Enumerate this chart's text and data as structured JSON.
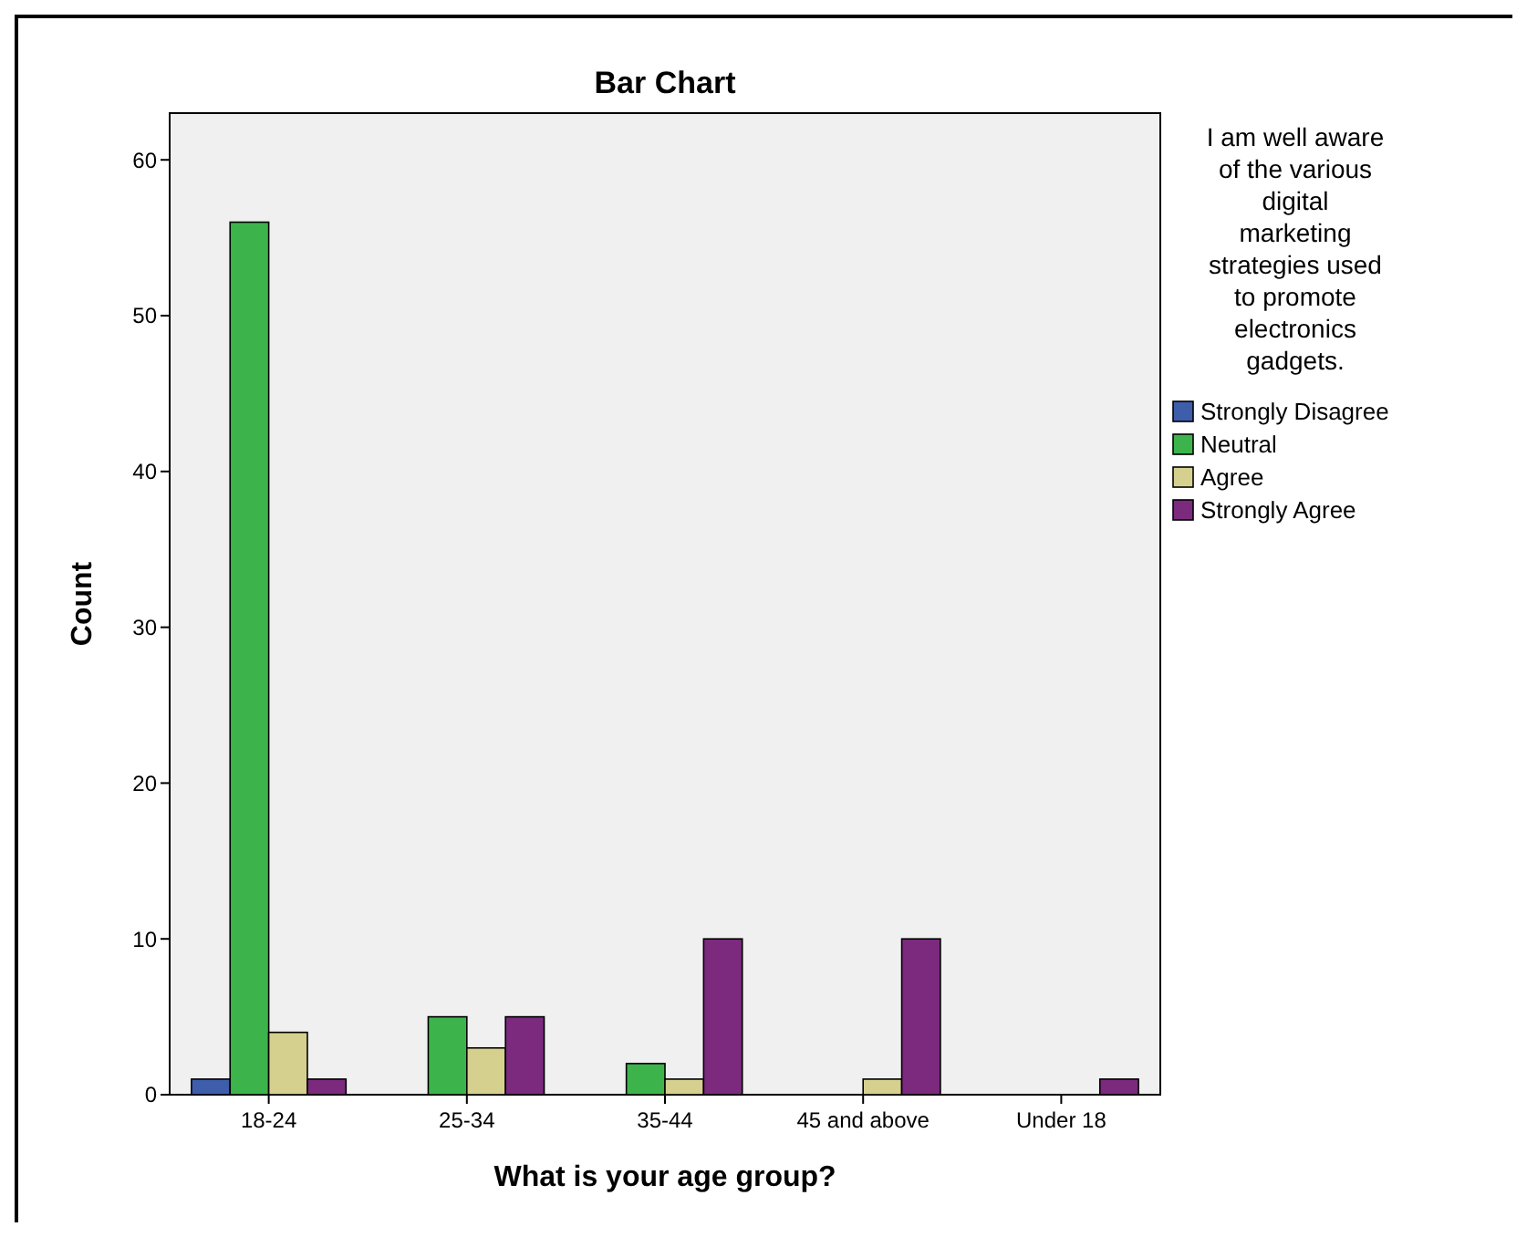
{
  "chart_data": {
    "type": "bar",
    "title": "Bar Chart",
    "xlabel": "What is your age group?",
    "ylabel": "Count",
    "legend_title": "I am well aware of the various digital marketing strategies used to promote electronics gadgets.",
    "categories": [
      "18-24",
      "25-34",
      "35-44",
      "45 and above",
      "Under 18"
    ],
    "series": [
      {
        "name": "Strongly Disagree",
        "color": "#3e5dab",
        "values": [
          1,
          null,
          null,
          null,
          null
        ]
      },
      {
        "name": "Neutral",
        "color": "#3cb44b",
        "values": [
          56,
          5,
          2,
          null,
          null
        ]
      },
      {
        "name": "Agree",
        "color": "#d6d08f",
        "values": [
          4,
          3,
          1,
          1,
          null
        ]
      },
      {
        "name": "Strongly Agree",
        "color": "#7b2a7e",
        "values": [
          1,
          5,
          10,
          10,
          1
        ]
      }
    ],
    "ylim": [
      0,
      63
    ],
    "yticks": [
      0,
      10,
      20,
      30,
      40,
      50,
      60
    ],
    "grid": false,
    "legend": "right"
  }
}
